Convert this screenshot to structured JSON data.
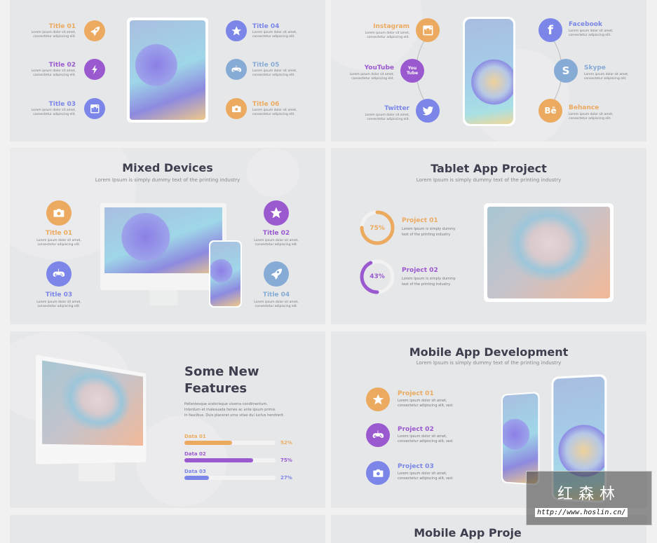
{
  "colors": {
    "orange": "#EBAA5F",
    "purple": "#9B59CF",
    "violet": "#7B86E8",
    "lightblue": "#86ABD4",
    "title": "#3d3f4f"
  },
  "lorem_short": "Lorem ipsum dolor sit amet,",
  "lorem_short2": "consectetur adipiscing elit.",
  "slide1": {
    "items": [
      {
        "title": "Title 01",
        "icon": "rocket-icon",
        "color": "#EBAA5F"
      },
      {
        "title": "Title 02",
        "icon": "lightning-icon",
        "color": "#9B59CF"
      },
      {
        "title": "Title 03",
        "icon": "instagram-icon",
        "color": "#7B86E8"
      },
      {
        "title": "Title 04",
        "icon": "star-icon",
        "color": "#7B86E8"
      },
      {
        "title": "Title 05",
        "icon": "gamepad-icon",
        "color": "#86ABD4"
      },
      {
        "title": "Title 06",
        "icon": "camera-icon",
        "color": "#EBAA5F"
      }
    ]
  },
  "slide2": {
    "items": [
      {
        "title": "Instagram",
        "icon": "instagram-icon",
        "color": "#EBAA5F"
      },
      {
        "title": "YouTube",
        "icon": "youtube-icon",
        "color": "#9B59CF"
      },
      {
        "title": "Twitter",
        "icon": "twitter-icon",
        "color": "#7B86E8"
      },
      {
        "title": "Facebook",
        "icon": "facebook-icon",
        "color": "#7B86E8"
      },
      {
        "title": "Skype",
        "icon": "skype-icon",
        "color": "#86ABD4"
      },
      {
        "title": "Behance",
        "icon": "behance-icon",
        "color": "#EBAA5F"
      }
    ],
    "youtube_glyph": "You Tube",
    "behance_glyph": "Bē",
    "facebook_glyph": "f",
    "skype_glyph": "S"
  },
  "slide3": {
    "title": "Mixed Devices",
    "subtitle": "Lorem Ipsum is simply dummy text of the printing industry",
    "items": [
      {
        "title": "Title 01",
        "icon": "camera-icon",
        "color": "#EBAA5F"
      },
      {
        "title": "Title 02",
        "icon": "star-icon",
        "color": "#9B59CF"
      },
      {
        "title": "Title 03",
        "icon": "gamepad-icon",
        "color": "#7B86E8"
      },
      {
        "title": "Title 04",
        "icon": "rocket-icon",
        "color": "#86ABD4"
      }
    ]
  },
  "slide4": {
    "title": "Tablet App Project",
    "subtitle": "Lorem Ipsum is simply dummy text of the printing industry",
    "desc1": "Lorem Ipsum is simply dummy",
    "desc2": "text of the printing industry",
    "projects": [
      {
        "title": "Project 01",
        "percent_label": "75%",
        "percent": 75,
        "color": "#EBAA5F"
      },
      {
        "title": "Project 02",
        "percent_label": "43%",
        "percent": 43,
        "color": "#9B59CF"
      }
    ]
  },
  "slide5": {
    "title_line1": "Some New",
    "title_line2": "Features",
    "para": [
      "Pellentesque scelerisque viverra condimentum.",
      "Interdum et malesuada fames ac ante ipsum primis",
      "in faucibus. Duis placerat urna vitae dui luctus hendrerit."
    ],
    "bars": [
      {
        "label": "Data 01",
        "value_label": "52%",
        "value": 52,
        "color": "#EBAA5F"
      },
      {
        "label": "Data 02",
        "value_label": "75%",
        "value": 75,
        "color": "#9B59CF"
      },
      {
        "label": "Data 03",
        "value_label": "27%",
        "value": 27,
        "color": "#7B86E8"
      }
    ]
  },
  "slide6": {
    "title": "Mobile App Development",
    "subtitle": "Lorem Ipsum is simply dummy text of the printing industry",
    "desc2": "consectetur adipiscing elit, sed.",
    "items": [
      {
        "title": "Project 01",
        "icon": "star-icon",
        "color": "#EBAA5F"
      },
      {
        "title": "Project 02",
        "icon": "gamepad-icon",
        "color": "#9B59CF"
      },
      {
        "title": "Project 03",
        "icon": "camera-icon",
        "color": "#7B86E8"
      }
    ]
  },
  "slide8": {
    "title": "Mobile App Proje"
  },
  "watermark": {
    "brand": "红森林",
    "url": "http://www.hoslin.cn/"
  }
}
